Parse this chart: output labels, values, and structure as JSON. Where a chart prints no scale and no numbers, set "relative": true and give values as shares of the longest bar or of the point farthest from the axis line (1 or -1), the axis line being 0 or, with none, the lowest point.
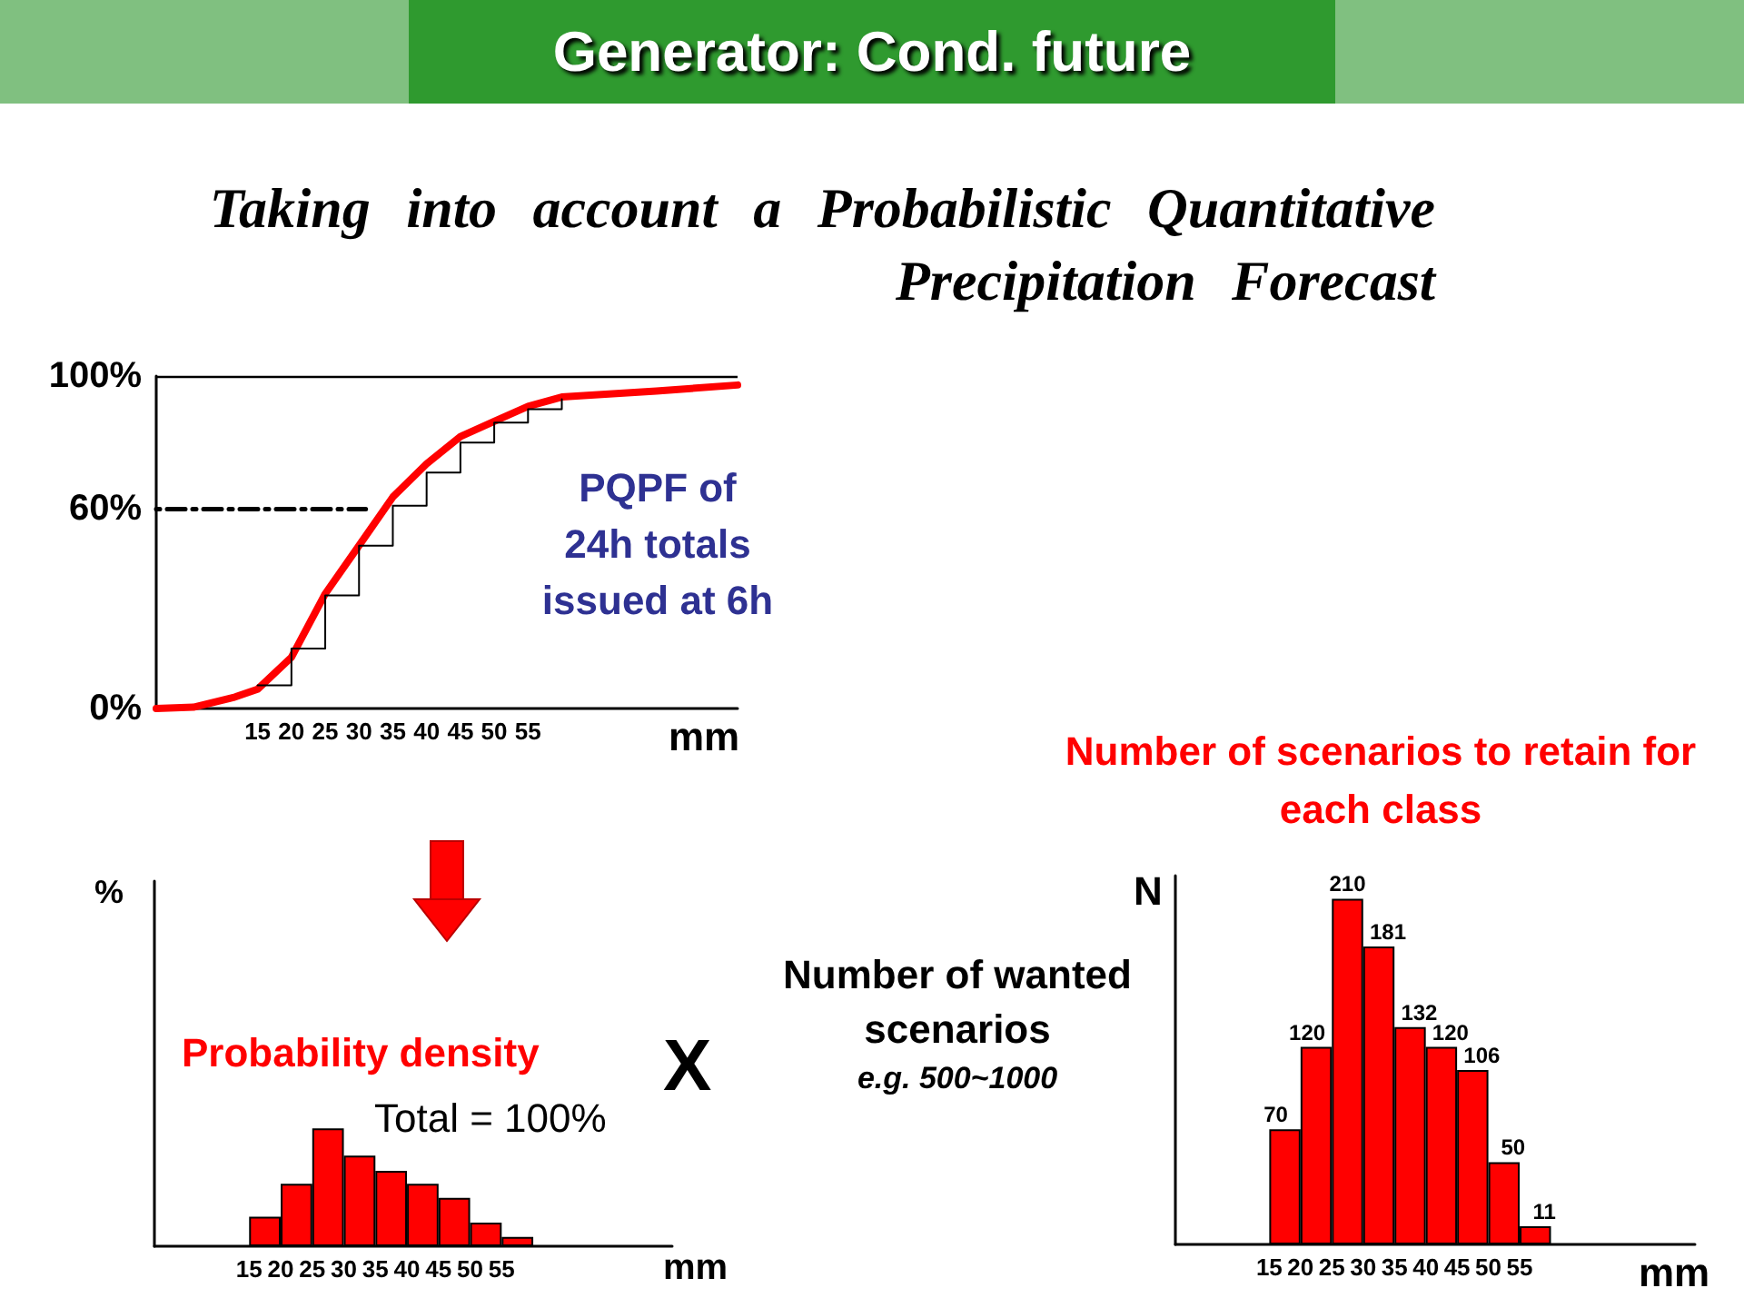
{
  "chart_data": [
    {
      "type": "line",
      "title": "Generator: Cond. future",
      "subtitle": "Taking into account a Probabilistic Quantitative Precipitation Forecast",
      "xlabel": "mm",
      "annotations": [
        "PQPF of 24h totals issued at 6h"
      ],
      "xlim": [
        0,
        86
      ],
      "xticks": [
        15,
        20,
        25,
        30,
        35,
        40,
        45,
        50,
        55
      ],
      "ylim": [
        0,
        100
      ],
      "yticks": [
        {
          "value": 0,
          "label": "0%"
        },
        {
          "value": 60,
          "label": "60%"
        },
        {
          "value": 100,
          "label": "100%"
        }
      ],
      "ref_lines": [
        {
          "axis": "y",
          "value": 100,
          "color": "#000000"
        }
      ],
      "series": [
        {
          "color": "#ff0000",
          "x": [
            0,
            5.5,
            11.4,
            15,
            20,
            25,
            30,
            35,
            40,
            45,
            50,
            55,
            60,
            74,
            86
          ],
          "values": [
            0,
            0.4,
            3.3,
            5.8,
            15.4,
            34.5,
            49,
            63.6,
            73.6,
            81.8,
            86.4,
            90.9,
            93.7,
            95.5,
            97.3
          ]
        },
        {
          "type": "step",
          "color": "#000000",
          "x": [
            15,
            20,
            25,
            30,
            35,
            40,
            45,
            50,
            55,
            60
          ],
          "values": [
            7,
            18,
            34,
            49,
            61,
            71,
            80,
            86,
            90,
            93
          ]
        },
        {
          "color": "#000000",
          "line_style": "dotted",
          "x": [
            0,
            31
          ],
          "values": [
            60,
            60
          ]
        }
      ],
      "marker": "none"
    },
    {
      "type": "bar",
      "ylabel": "%",
      "xlabel": "mm",
      "annotations": [
        "Probability density",
        "Total = 100%"
      ],
      "relative": true,
      "x": [
        17.5,
        22.5,
        27.5,
        32.5,
        37.5,
        42.5,
        47.5,
        52.5,
        57.5
      ],
      "values": [
        0.25,
        0.53,
        1,
        0.77,
        0.64,
        0.53,
        0.41,
        0.2,
        0.08
      ],
      "color": "#ff0000",
      "xlim": [
        0,
        82
      ],
      "xticks": [
        15,
        20,
        25,
        30,
        35,
        40,
        45,
        50,
        55
      ],
      "tick_labels": "x"
    },
    {
      "type": "bar",
      "title": "Number of scenarios to retain for each class",
      "ylabel": "N",
      "xlabel": "mm",
      "x": [
        17.5,
        22.5,
        27.5,
        32.5,
        37.5,
        42.5,
        47.5,
        52.5,
        57.5
      ],
      "values": [
        70,
        120,
        210,
        181,
        132,
        120,
        106,
        50,
        11
      ],
      "color": "#ff0000",
      "data_labels": true,
      "xlim": [
        0,
        83
      ],
      "ylim": [
        0,
        224
      ],
      "xticks": [
        15,
        20,
        25,
        30,
        35,
        40,
        45,
        50,
        55
      ],
      "tick_labels": "x"
    },
    {
      "type": "other",
      "annotations": [
        "X",
        "Number of wanted scenarios",
        "e.g. 500~1000"
      ]
    }
  ]
}
